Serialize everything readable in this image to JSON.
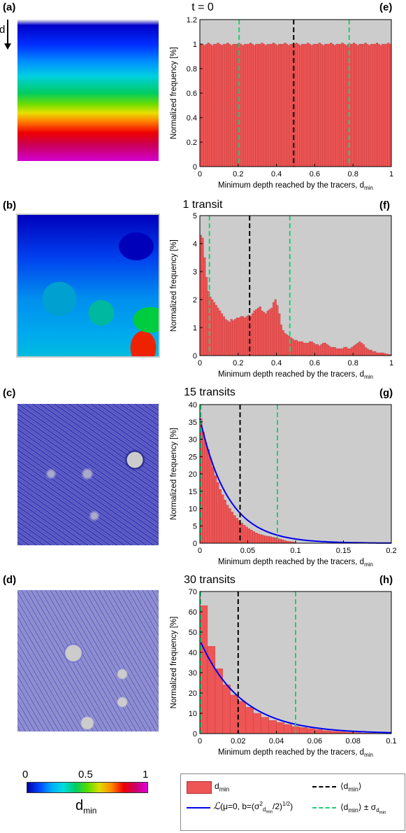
{
  "panel_labels": [
    "(a)",
    "(b)",
    "(c)",
    "(d)",
    "(e)",
    "(f)",
    "(g)",
    "(h)"
  ],
  "depth_arrow_label": "d",
  "colorbar": {
    "ticks": [
      "0",
      "0.5",
      "1"
    ],
    "label_main": "d",
    "label_sub": "min"
  },
  "legend": {
    "hist_main": "d",
    "hist_sub": "min",
    "fit_label": "ℒ(μ=0, b=(σ² /2)¹ᐟ²)",
    "fit_label_plain": "(μ=0, b=(σ",
    "mean_label": "⟨d",
    "mean_std_label": "⟨d"
  },
  "colors": {
    "bar": "#ee5555",
    "bar_edge": "#b03030",
    "background": "#cccccc",
    "mean_line": "#000000",
    "std_line": "#22cc77",
    "fit_line": "#0000ee"
  },
  "chart_data": [
    {
      "type": "bar",
      "title": "t = 0",
      "xlabel_main": "Minimum depth reached by the tracers, d",
      "xlabel_sub": "min",
      "ylabel": "Normalized frequency [%]",
      "xlim": [
        0,
        1
      ],
      "ylim": [
        0,
        1.2
      ],
      "xticks": [
        "0",
        "0.2",
        "0.4",
        "0.6",
        "0.8",
        "1"
      ],
      "yticks": [
        "0",
        "0.2",
        "0.4",
        "0.6",
        "0.8",
        "1",
        "1.2"
      ],
      "bin_width": 0.01,
      "values": [
        1.0,
        1.0,
        0.99,
        1.0,
        1.01,
        1.0,
        0.99,
        1.0,
        1.0,
        1.01,
        1.0,
        0.99,
        1.0,
        1.0,
        1.01,
        1.0,
        0.99,
        1.0,
        1.0,
        1.0,
        1.01,
        1.0,
        0.99,
        1.0,
        1.0,
        1.0,
        1.01,
        1.0,
        0.99,
        1.0,
        1.0,
        1.0,
        1.01,
        1.0,
        0.99,
        1.0,
        1.0,
        1.0,
        1.01,
        1.0,
        0.99,
        1.0,
        1.0,
        1.0,
        1.01,
        1.0,
        0.99,
        1.0,
        1.0,
        1.0,
        1.01,
        1.0,
        0.99,
        1.0,
        1.0,
        1.0,
        1.01,
        1.0,
        0.99,
        1.0,
        1.0,
        1.0,
        1.01,
        1.0,
        0.99,
        1.0,
        1.0,
        1.0,
        1.01,
        1.0,
        0.99,
        1.0,
        1.0,
        1.0,
        1.01,
        1.0,
        0.99,
        1.0,
        1.0,
        1.0,
        1.01,
        1.0,
        0.99,
        1.0,
        1.0,
        1.0,
        1.01,
        1.0,
        0.99,
        1.0,
        1.0,
        1.0,
        1.01,
        1.0,
        0.99,
        1.0,
        1.0,
        1.0,
        1.01,
        1.0
      ],
      "mean": 0.49,
      "std_lines": [
        0.205,
        0.78
      ]
    },
    {
      "type": "bar",
      "title": "1 transit",
      "xlabel_main": "Minimum depth reached by the tracers, d",
      "xlabel_sub": "min",
      "ylabel": "Normalized frequency [%]",
      "xlim": [
        0,
        1
      ],
      "ylim": [
        0,
        5
      ],
      "xticks": [
        "0",
        "0.2",
        "0.4",
        "0.6",
        "0.8",
        "1"
      ],
      "yticks": [
        "0",
        "1",
        "2",
        "3",
        "4",
        "5"
      ],
      "bin_width": 0.01,
      "values": [
        4.3,
        4.2,
        3.5,
        2.8,
        2.3,
        2.1,
        2.0,
        1.9,
        1.8,
        1.7,
        1.6,
        1.5,
        1.4,
        1.3,
        1.25,
        1.2,
        1.3,
        1.25,
        1.3,
        1.35,
        1.35,
        1.4,
        1.4,
        1.35,
        1.4,
        1.45,
        1.4,
        1.5,
        1.6,
        1.65,
        1.7,
        1.75,
        1.6,
        1.55,
        1.5,
        1.6,
        1.65,
        1.7,
        1.9,
        2.0,
        1.8,
        1.5,
        1.1,
        0.9,
        0.8,
        0.75,
        0.7,
        0.65,
        0.6,
        0.55,
        0.55,
        0.5,
        0.5,
        0.5,
        0.45,
        0.45,
        0.45,
        0.5,
        0.5,
        0.45,
        0.4,
        0.4,
        0.35,
        0.4,
        0.45,
        0.45,
        0.4,
        0.35,
        0.3,
        0.3,
        0.3,
        0.25,
        0.25,
        0.25,
        0.25,
        0.3,
        0.3,
        0.25,
        0.25,
        0.3,
        0.35,
        0.4,
        0.45,
        0.5,
        0.45,
        0.4,
        0.3,
        0.25,
        0.2,
        0.2,
        0.15,
        0.15,
        0.1,
        0.1,
        0.1,
        0.1,
        0.08,
        0.06,
        0.05,
        0.04
      ],
      "mean": 0.26,
      "std_lines": [
        0.05,
        0.47
      ]
    },
    {
      "type": "bar",
      "title": "15 transits",
      "xlabel_main": "Minimum depth reached by the tracers, d",
      "xlabel_sub": "min",
      "ylabel": "Normalized frequency [%]",
      "xlim": [
        0,
        0.2
      ],
      "ylim": [
        0,
        40
      ],
      "xticks": [
        "0",
        "0.05",
        "0.1",
        "0.15",
        "0.2"
      ],
      "yticks": [
        "0",
        "5",
        "10",
        "15",
        "20",
        "25",
        "30",
        "35",
        "40"
      ],
      "bin_width": 0.0025,
      "values": [
        36,
        32,
        29,
        27,
        24.5,
        22,
        19.5,
        17.5,
        15.5,
        14,
        12.5,
        11,
        10,
        9,
        8,
        7.2,
        6.5,
        5.8,
        5.2,
        4.7,
        4.2,
        3.8,
        3.4,
        3.0,
        2.7,
        2.5,
        2.3,
        2.1,
        2.0,
        1.9,
        1.7,
        1.6,
        1.4,
        1.2,
        1.0,
        0.8,
        0.6,
        0.5,
        0.4,
        0.3
      ],
      "mean": 0.042,
      "std_lines": [
        0.001,
        0.081
      ],
      "fit": {
        "a": 36,
        "b": 0.0295
      }
    },
    {
      "type": "bar",
      "title": "30 transits",
      "xlabel_main": "Minimum depth reached by the tracers, d",
      "xlabel_sub": "min",
      "ylabel": "Normalized frequency [%]",
      "xlim": [
        0,
        0.1
      ],
      "ylim": [
        0,
        70
      ],
      "xticks": [
        "0",
        "0.02",
        "0.04",
        "0.06",
        "0.08",
        "0.1"
      ],
      "yticks": [
        "0",
        "10",
        "20",
        "30",
        "40",
        "50",
        "60",
        "70"
      ],
      "bin_width": 0.004,
      "values": [
        63,
        43,
        32,
        24,
        19,
        16,
        13,
        10,
        8,
        6.5,
        5.5,
        4.5,
        3.5,
        3,
        2.5,
        2,
        1.5,
        1.2,
        1,
        0.7,
        0.5,
        0.3,
        0.2,
        0.1,
        0.1
      ],
      "mean": 0.02,
      "std_lines": [
        0.0,
        0.05
      ],
      "fit": {
        "a": 46,
        "b": 0.0217
      }
    }
  ]
}
